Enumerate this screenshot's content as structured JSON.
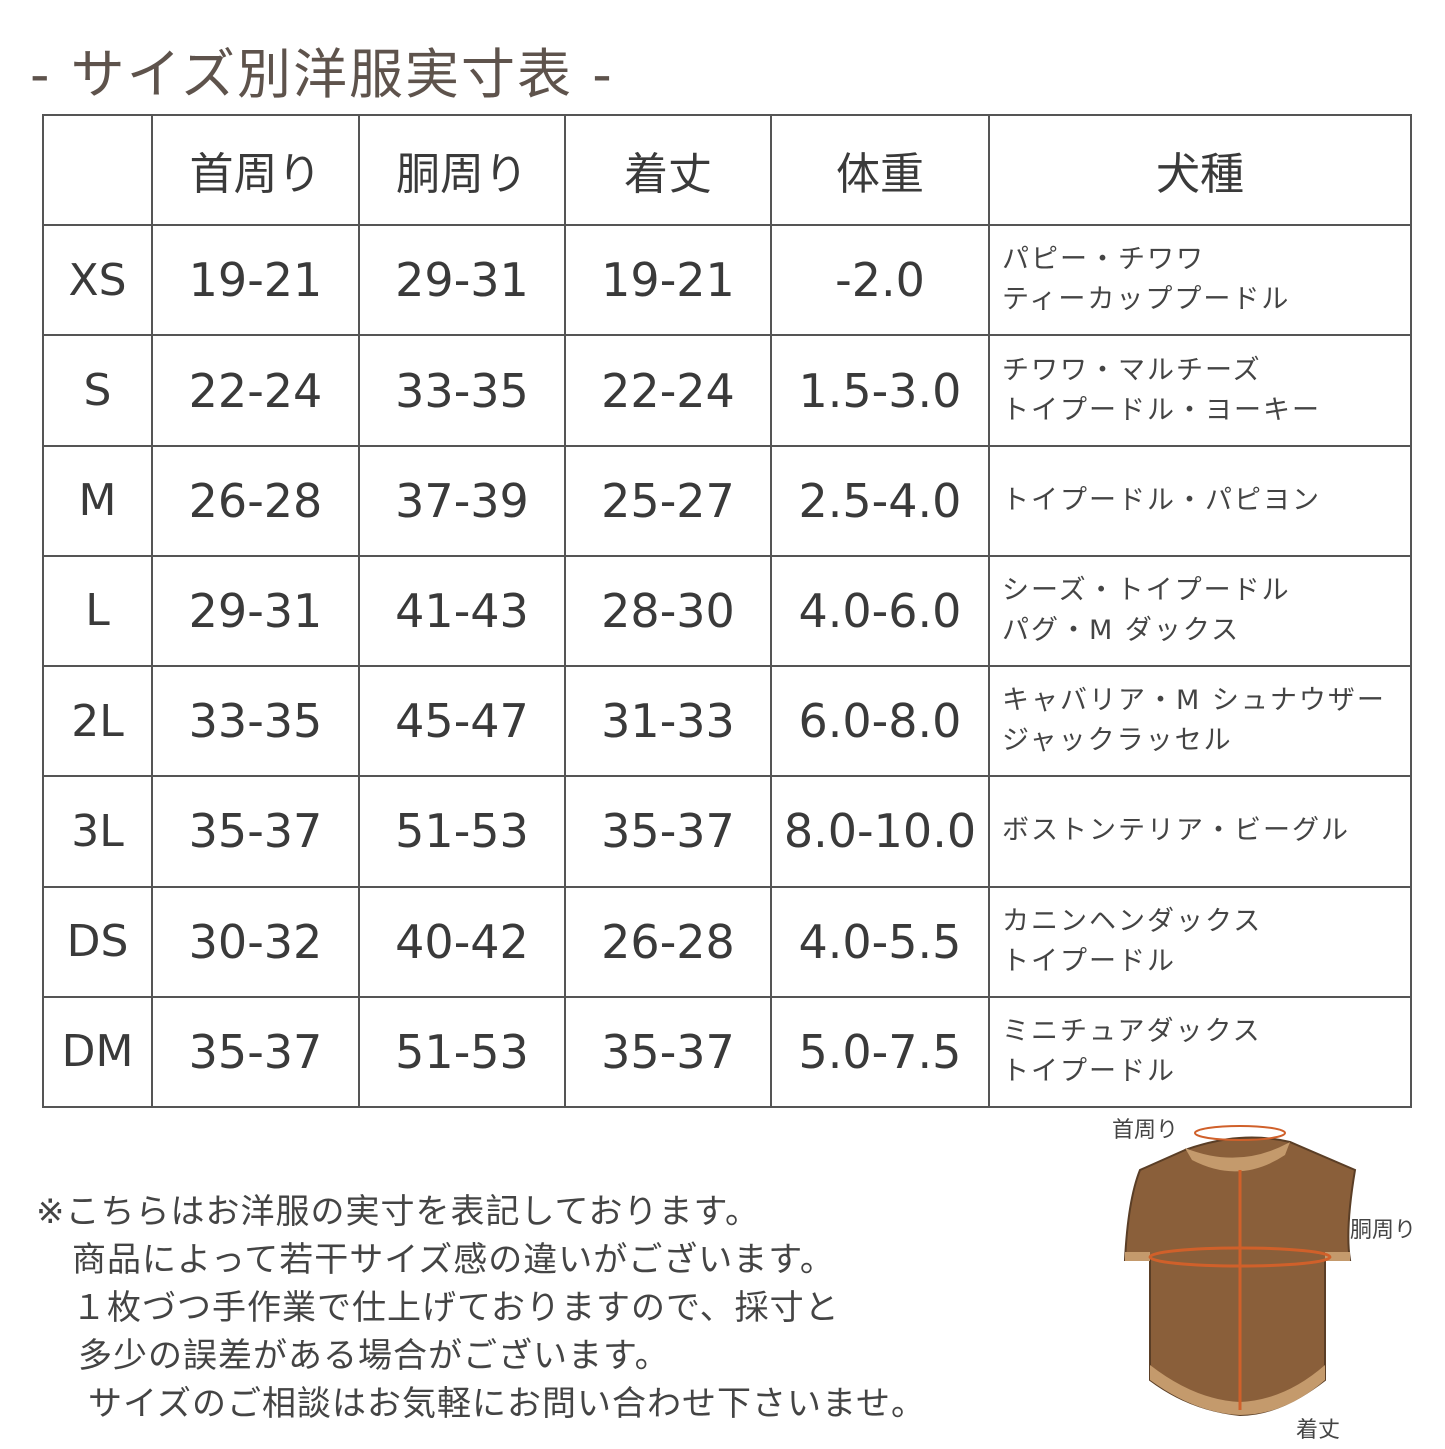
{
  "title": "- サイズ別洋服実寸表 -",
  "table": {
    "headers": [
      "",
      "首周り",
      "胴周り",
      "着丈",
      "体重",
      "犬種"
    ],
    "rows": [
      {
        "size": "XS",
        "neck": "19-21",
        "chest": "29-31",
        "length": "19-21",
        "weight": "-2.0",
        "breeds": [
          "パピー・チワワ",
          "ティーカッププードル"
        ]
      },
      {
        "size": "S",
        "neck": "22-24",
        "chest": "33-35",
        "length": "22-24",
        "weight": "1.5-3.0",
        "breeds": [
          "チワワ・マルチーズ",
          "トイプードル・ヨーキー"
        ]
      },
      {
        "size": "M",
        "neck": "26-28",
        "chest": "37-39",
        "length": "25-27",
        "weight": "2.5-4.0",
        "breeds": [
          "トイプードル・パピヨン"
        ]
      },
      {
        "size": "L",
        "neck": "29-31",
        "chest": "41-43",
        "length": "28-30",
        "weight": "4.0-6.0",
        "breeds": [
          "シーズ・トイプードル",
          "パグ・M ダックス"
        ]
      },
      {
        "size": "2L",
        "neck": "33-35",
        "chest": "45-47",
        "length": "31-33",
        "weight": "6.0-8.0",
        "breeds": [
          "キャバリア・M シュナウザー",
          "ジャックラッセル"
        ]
      },
      {
        "size": "3L",
        "neck": "35-37",
        "chest": "51-53",
        "length": "35-37",
        "weight": "8.0-10.0",
        "breeds": [
          "ボストンテリア・ビーグル"
        ]
      },
      {
        "size": "DS",
        "neck": "30-32",
        "chest": "40-42",
        "length": "26-28",
        "weight": "4.0-5.5",
        "breeds": [
          "カニンヘンダックス",
          "トイプードル"
        ]
      },
      {
        "size": "DM",
        "neck": "35-37",
        "chest": "51-53",
        "length": "35-37",
        "weight": "5.0-7.5",
        "breeds": [
          "ミニチュアダックス",
          "トイプードル"
        ]
      }
    ]
  },
  "notes": [
    "※こちらはお洋服の実寸を表記しております。",
    "商品によって若干サイズ感の違いがございます。",
    "１枚づつ手作業で仕上げておりますので、採寸と",
    "多少の誤差がある場合がございます。",
    "サイズのご相談はお気軽にお問い合わせ下さいませ。"
  ],
  "diagram": {
    "neck_label": "首周り",
    "chest_label": "胴周り",
    "length_label": "着丈",
    "colors": {
      "body": "#8a5f3a",
      "trim": "#c49a6c",
      "measure": "#d0602a"
    }
  }
}
